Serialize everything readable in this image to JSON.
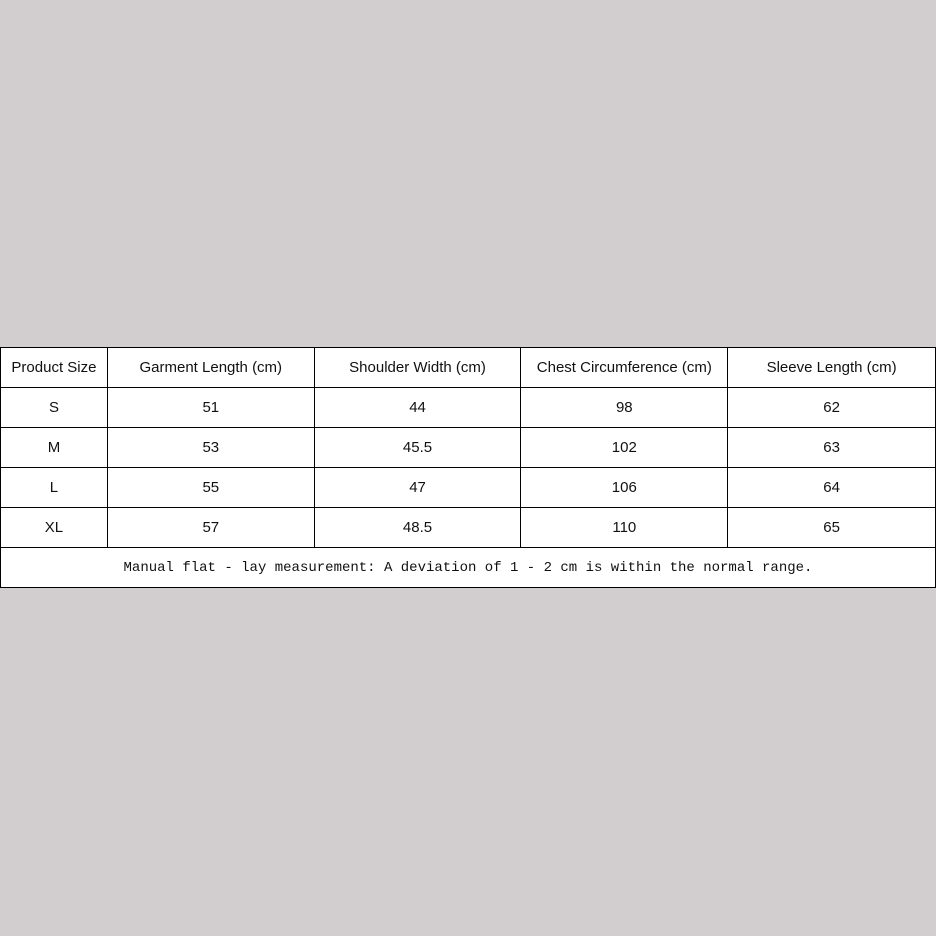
{
  "table": {
    "headers": [
      "Product Size",
      "Garment Length (cm)",
      "Shoulder Width (cm)",
      "Chest Circumference (cm)",
      "Sleeve Length (cm)"
    ],
    "rows": [
      [
        "S",
        "51",
        "44",
        "98",
        "62"
      ],
      [
        "M",
        "53",
        "45.5",
        "102",
        "63"
      ],
      [
        "L",
        "55",
        "47",
        "106",
        "64"
      ],
      [
        "XL",
        "57",
        "48.5",
        "110",
        "65"
      ]
    ],
    "note": "Manual flat - lay measurement: A deviation of 1 - 2 cm is within the normal range."
  }
}
